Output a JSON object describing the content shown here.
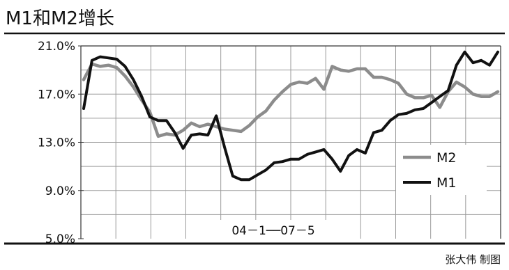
{
  "chart_data": {
    "type": "line",
    "title": "M1和M2增长",
    "credit": "张大伟 制图",
    "period_label": "04－1──07－5",
    "xlabel": "",
    "ylabel": "",
    "ylim": [
      5.0,
      21.0
    ],
    "y_ticks": [
      "21.0%",
      "17.0%",
      "13.0%",
      "9.0%",
      "5.0%"
    ],
    "y_tick_values": [
      21.0,
      17.0,
      13.0,
      9.0,
      5.0
    ],
    "grid": true,
    "legend_position": "right",
    "colors": {
      "M2": "#8c8c8c",
      "M1": "#111111"
    },
    "series": [
      {
        "name": "M2",
        "values": [
          18.2,
          19.5,
          19.3,
          19.4,
          19.2,
          18.5,
          17.6,
          16.5,
          15.5,
          13.5,
          13.7,
          13.6,
          14.0,
          14.6,
          14.3,
          14.5,
          14.3,
          14.1,
          14.0,
          13.9,
          14.4,
          15.1,
          15.6,
          16.5,
          17.2,
          17.8,
          18.0,
          17.9,
          18.3,
          17.4,
          19.3,
          19.0,
          18.9,
          19.1,
          19.1,
          18.4,
          18.4,
          18.2,
          17.9,
          17.0,
          16.7,
          16.7,
          16.9,
          15.9,
          17.2,
          18.0,
          17.6,
          17.0,
          16.8,
          16.8,
          17.2
        ]
      },
      {
        "name": "M1",
        "values": [
          15.8,
          19.8,
          20.1,
          20.0,
          19.9,
          19.3,
          18.2,
          16.8,
          15.1,
          14.8,
          14.8,
          13.8,
          12.5,
          13.6,
          13.7,
          13.6,
          15.2,
          12.6,
          10.2,
          9.9,
          9.9,
          10.3,
          10.7,
          11.3,
          11.4,
          11.6,
          11.6,
          12.0,
          12.2,
          12.4,
          11.6,
          10.6,
          11.9,
          12.4,
          12.1,
          13.8,
          14.0,
          14.8,
          15.3,
          15.4,
          15.7,
          15.8,
          16.3,
          16.8,
          17.3,
          19.4,
          20.5,
          19.6,
          19.8,
          19.4,
          20.5
        ]
      }
    ]
  }
}
